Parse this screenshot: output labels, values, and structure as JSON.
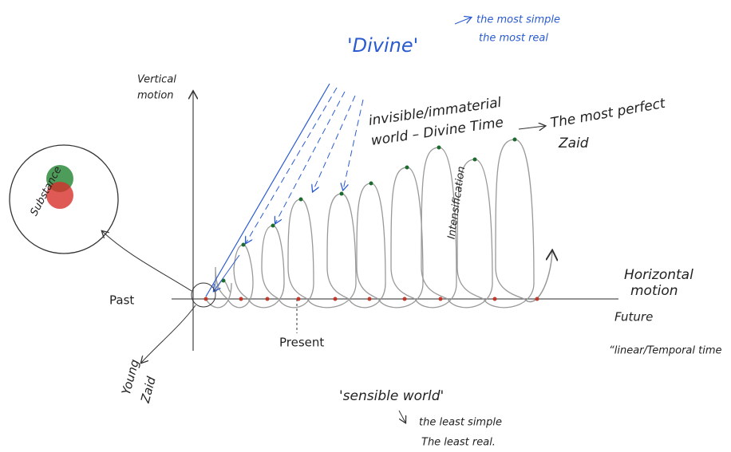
{
  "header": {
    "title": "'Divine'",
    "notes": [
      "the most simple",
      "the most real"
    ]
  },
  "axes": {
    "vertical": [
      "Vertical",
      "motion"
    ],
    "horizontal": [
      "Horizontal",
      "motion"
    ]
  },
  "labels": {
    "invisible": [
      "invisible/immaterial",
      "world – Divine Time"
    ],
    "perfect": [
      "The most perfect",
      "Zaid"
    ],
    "substance": "Substance",
    "intensification": "Intensification",
    "past": "Past",
    "present": "Present",
    "future": "Future",
    "temporal": "“linear/Temporal time",
    "young": [
      "Young",
      "Zaid"
    ],
    "sensible": "'sensible world'",
    "least": [
      "the least simple",
      "The least real."
    ]
  }
}
